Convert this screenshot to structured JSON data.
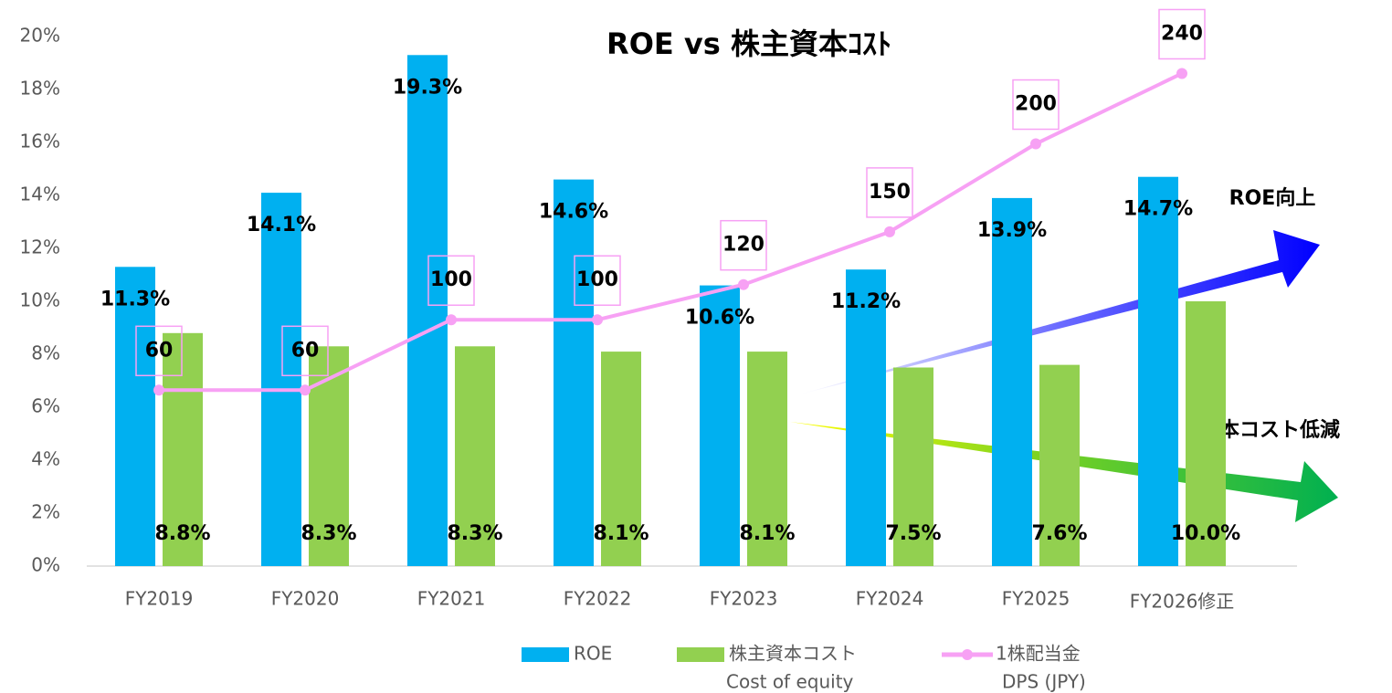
{
  "chart_data": {
    "type": "bar",
    "title": "ROE vs 株主資本ｺｽﾄ",
    "categories": [
      "FY2019",
      "FY2020",
      "FY2021",
      "FY2022",
      "FY2023",
      "FY2024",
      "FY2025",
      "FY2026修正"
    ],
    "series": [
      {
        "name": "ROE",
        "color": "#00b0f0",
        "values": [
          11.3,
          14.1,
          19.3,
          14.6,
          10.6,
          11.2,
          13.9,
          14.7
        ],
        "value_labels": [
          "11.3%",
          "14.1%",
          "19.3%",
          "14.6%",
          "10.6%",
          "11.2%",
          "13.9%",
          "14.7%"
        ]
      },
      {
        "name": "株主資本コスト",
        "name_en": "Cost of equity",
        "color": "#92d050",
        "values": [
          8.8,
          8.3,
          8.3,
          8.1,
          8.1,
          7.5,
          7.6,
          10.0
        ],
        "value_labels": [
          "8.8%",
          "8.3%",
          "8.3%",
          "8.1%",
          "8.1%",
          "7.5%",
          "7.6%",
          "10.0%"
        ]
      },
      {
        "name": "1株配当金",
        "name_en": "DPS (JPY)",
        "type": "line",
        "axis": "y2",
        "color": "#f7a1f4",
        "values": [
          60,
          60,
          100,
          100,
          120,
          150,
          200,
          240
        ]
      }
    ],
    "ylim": [
      0,
      20
    ],
    "yticks": [
      {
        "value": 0,
        "label": "0%"
      },
      {
        "value": 2,
        "label": "2%"
      },
      {
        "value": 4,
        "label": "4%"
      },
      {
        "value": 6,
        "label": "6%"
      },
      {
        "value": 8,
        "label": "8%"
      },
      {
        "value": 10,
        "label": "10%"
      },
      {
        "value": 12,
        "label": "12%"
      },
      {
        "value": 14,
        "label": "14%"
      },
      {
        "value": 16,
        "label": "16%"
      },
      {
        "value": 18,
        "label": "18%"
      },
      {
        "value": 20,
        "label": "20%"
      }
    ],
    "y2lim": [
      -40,
      261
    ],
    "grid": false,
    "annotations": [
      "ROE向上",
      "資本コスト低減"
    ]
  }
}
